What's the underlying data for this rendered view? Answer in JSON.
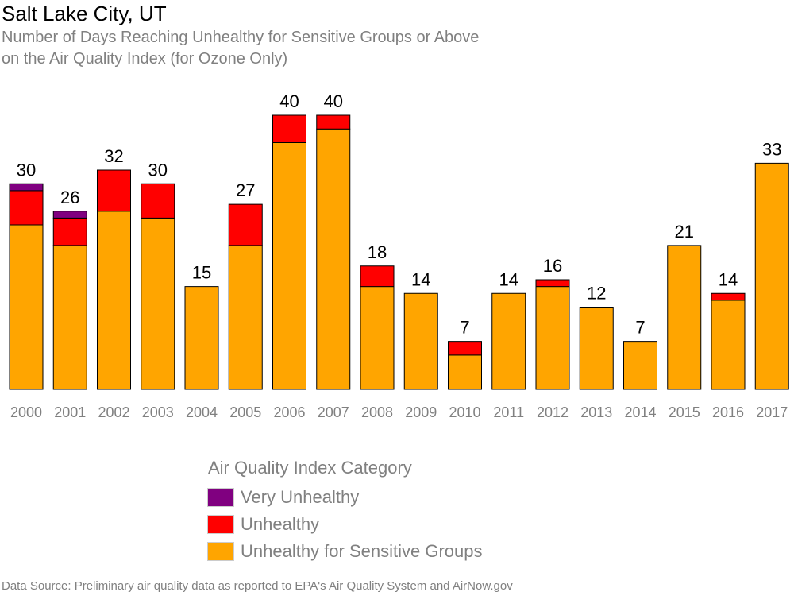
{
  "chart_data": {
    "type": "bar",
    "stacked": true,
    "title": "Salt Lake City, UT",
    "subtitle": [
      "Number of Days Reaching Unhealthy for Sensitive Groups or Above",
      "on the Air Quality Index (for Ozone Only)"
    ],
    "categories": [
      "2000",
      "2001",
      "2002",
      "2003",
      "2004",
      "2005",
      "2006",
      "2007",
      "2008",
      "2009",
      "2010",
      "2011",
      "2012",
      "2013",
      "2014",
      "2015",
      "2016",
      "2017"
    ],
    "series": [
      {
        "name": "Unhealthy for Sensitive Groups",
        "color": "#FFA500",
        "values": [
          24,
          21,
          26,
          25,
          15,
          21,
          36,
          38,
          15,
          14,
          5,
          14,
          15,
          12,
          7,
          21,
          13,
          33
        ]
      },
      {
        "name": "Unhealthy",
        "color": "#FF0000",
        "values": [
          5,
          4,
          6,
          5,
          0,
          6,
          4,
          2,
          3,
          0,
          2,
          0,
          1,
          0,
          0,
          0,
          1,
          0
        ]
      },
      {
        "name": "Very Unhealthy",
        "color": "#800080",
        "values": [
          1,
          1,
          0,
          0,
          0,
          0,
          0,
          0,
          0,
          0,
          0,
          0,
          0,
          0,
          0,
          0,
          0,
          0
        ]
      }
    ],
    "totals": [
      30,
      26,
      32,
      30,
      15,
      27,
      40,
      40,
      18,
      14,
      7,
      14,
      16,
      12,
      7,
      21,
      14,
      33
    ],
    "ylim": [
      0,
      40
    ],
    "legend_position": "bottom",
    "grid": false
  },
  "legend": {
    "title": "Air Quality Index Category",
    "items": [
      {
        "label": "Very Unhealthy",
        "color": "#800080"
      },
      {
        "label": "Unhealthy",
        "color": "#FF0000"
      },
      {
        "label": "Unhealthy for Sensitive Groups",
        "color": "#FFA500"
      }
    ]
  },
  "source": "Data Source: Preliminary air quality data as reported to EPA's Air Quality System and AirNow.gov"
}
